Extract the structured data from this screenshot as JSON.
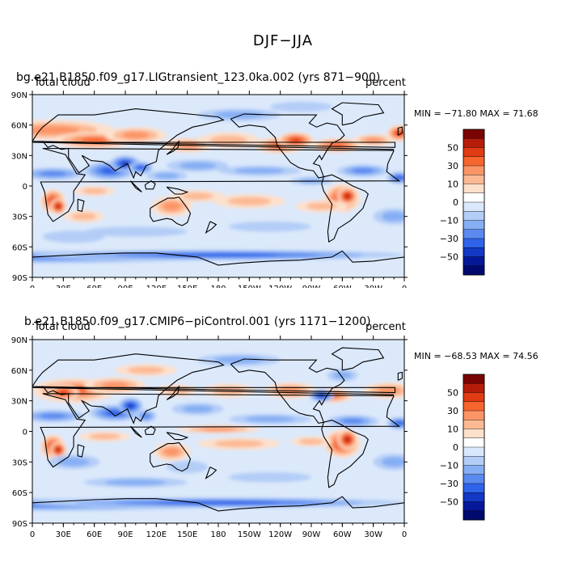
{
  "figure": {
    "title": "DJF−JJA"
  },
  "panels": [
    {
      "title": "bg.e21.B1850.f09_g17.LIGtransient_123.0ka.002 (yrs 871−900)",
      "variable": "Total cloud",
      "units": "percent",
      "stats": "MIN = −71.80 MAX =  71.68",
      "min": -71.8,
      "max": 71.68
    },
    {
      "title": "b.e21.B1850.f09_g17.CMIP6−piControl.001 (yrs 1171−1200)",
      "variable": "Total cloud",
      "units": "percent",
      "stats": "MIN = −68.53 MAX =  74.56",
      "min": -68.53,
      "max": 74.56
    }
  ],
  "axes": {
    "lat_ticks": [
      "90N",
      "60N",
      "30N",
      "0",
      "30S",
      "60S",
      "90S"
    ],
    "lon_ticks": [
      "0",
      "30E",
      "60E",
      "90E",
      "120E",
      "150E",
      "180",
      "150W",
      "120W",
      "90W",
      "60W",
      "30W",
      "0"
    ]
  },
  "colorbar": {
    "labels": [
      "50",
      "30",
      "10",
      "0",
      "−10",
      "−30",
      "−50"
    ],
    "colors": [
      "#7a0403",
      "#b51d0a",
      "#e03b12",
      "#f6652e",
      "#fb9466",
      "#fcb994",
      "#fde0cc",
      "#ffffff",
      "#dbe8fb",
      "#b3cdf7",
      "#86aef4",
      "#5a8af0",
      "#2f63e9",
      "#1238c4",
      "#06189a",
      "#000a6e"
    ]
  },
  "map_colors": {
    "neutral": "#dce9fb",
    "neg": [
      "#b3cdf7",
      "#86aef4",
      "#5a8af0",
      "#2f63e9",
      "#1238c4"
    ],
    "pos": [
      "#fde0cc",
      "#fcb994",
      "#fb9466",
      "#f6652e",
      "#e03b12",
      "#b51d0a"
    ],
    "land": "#000000"
  }
}
